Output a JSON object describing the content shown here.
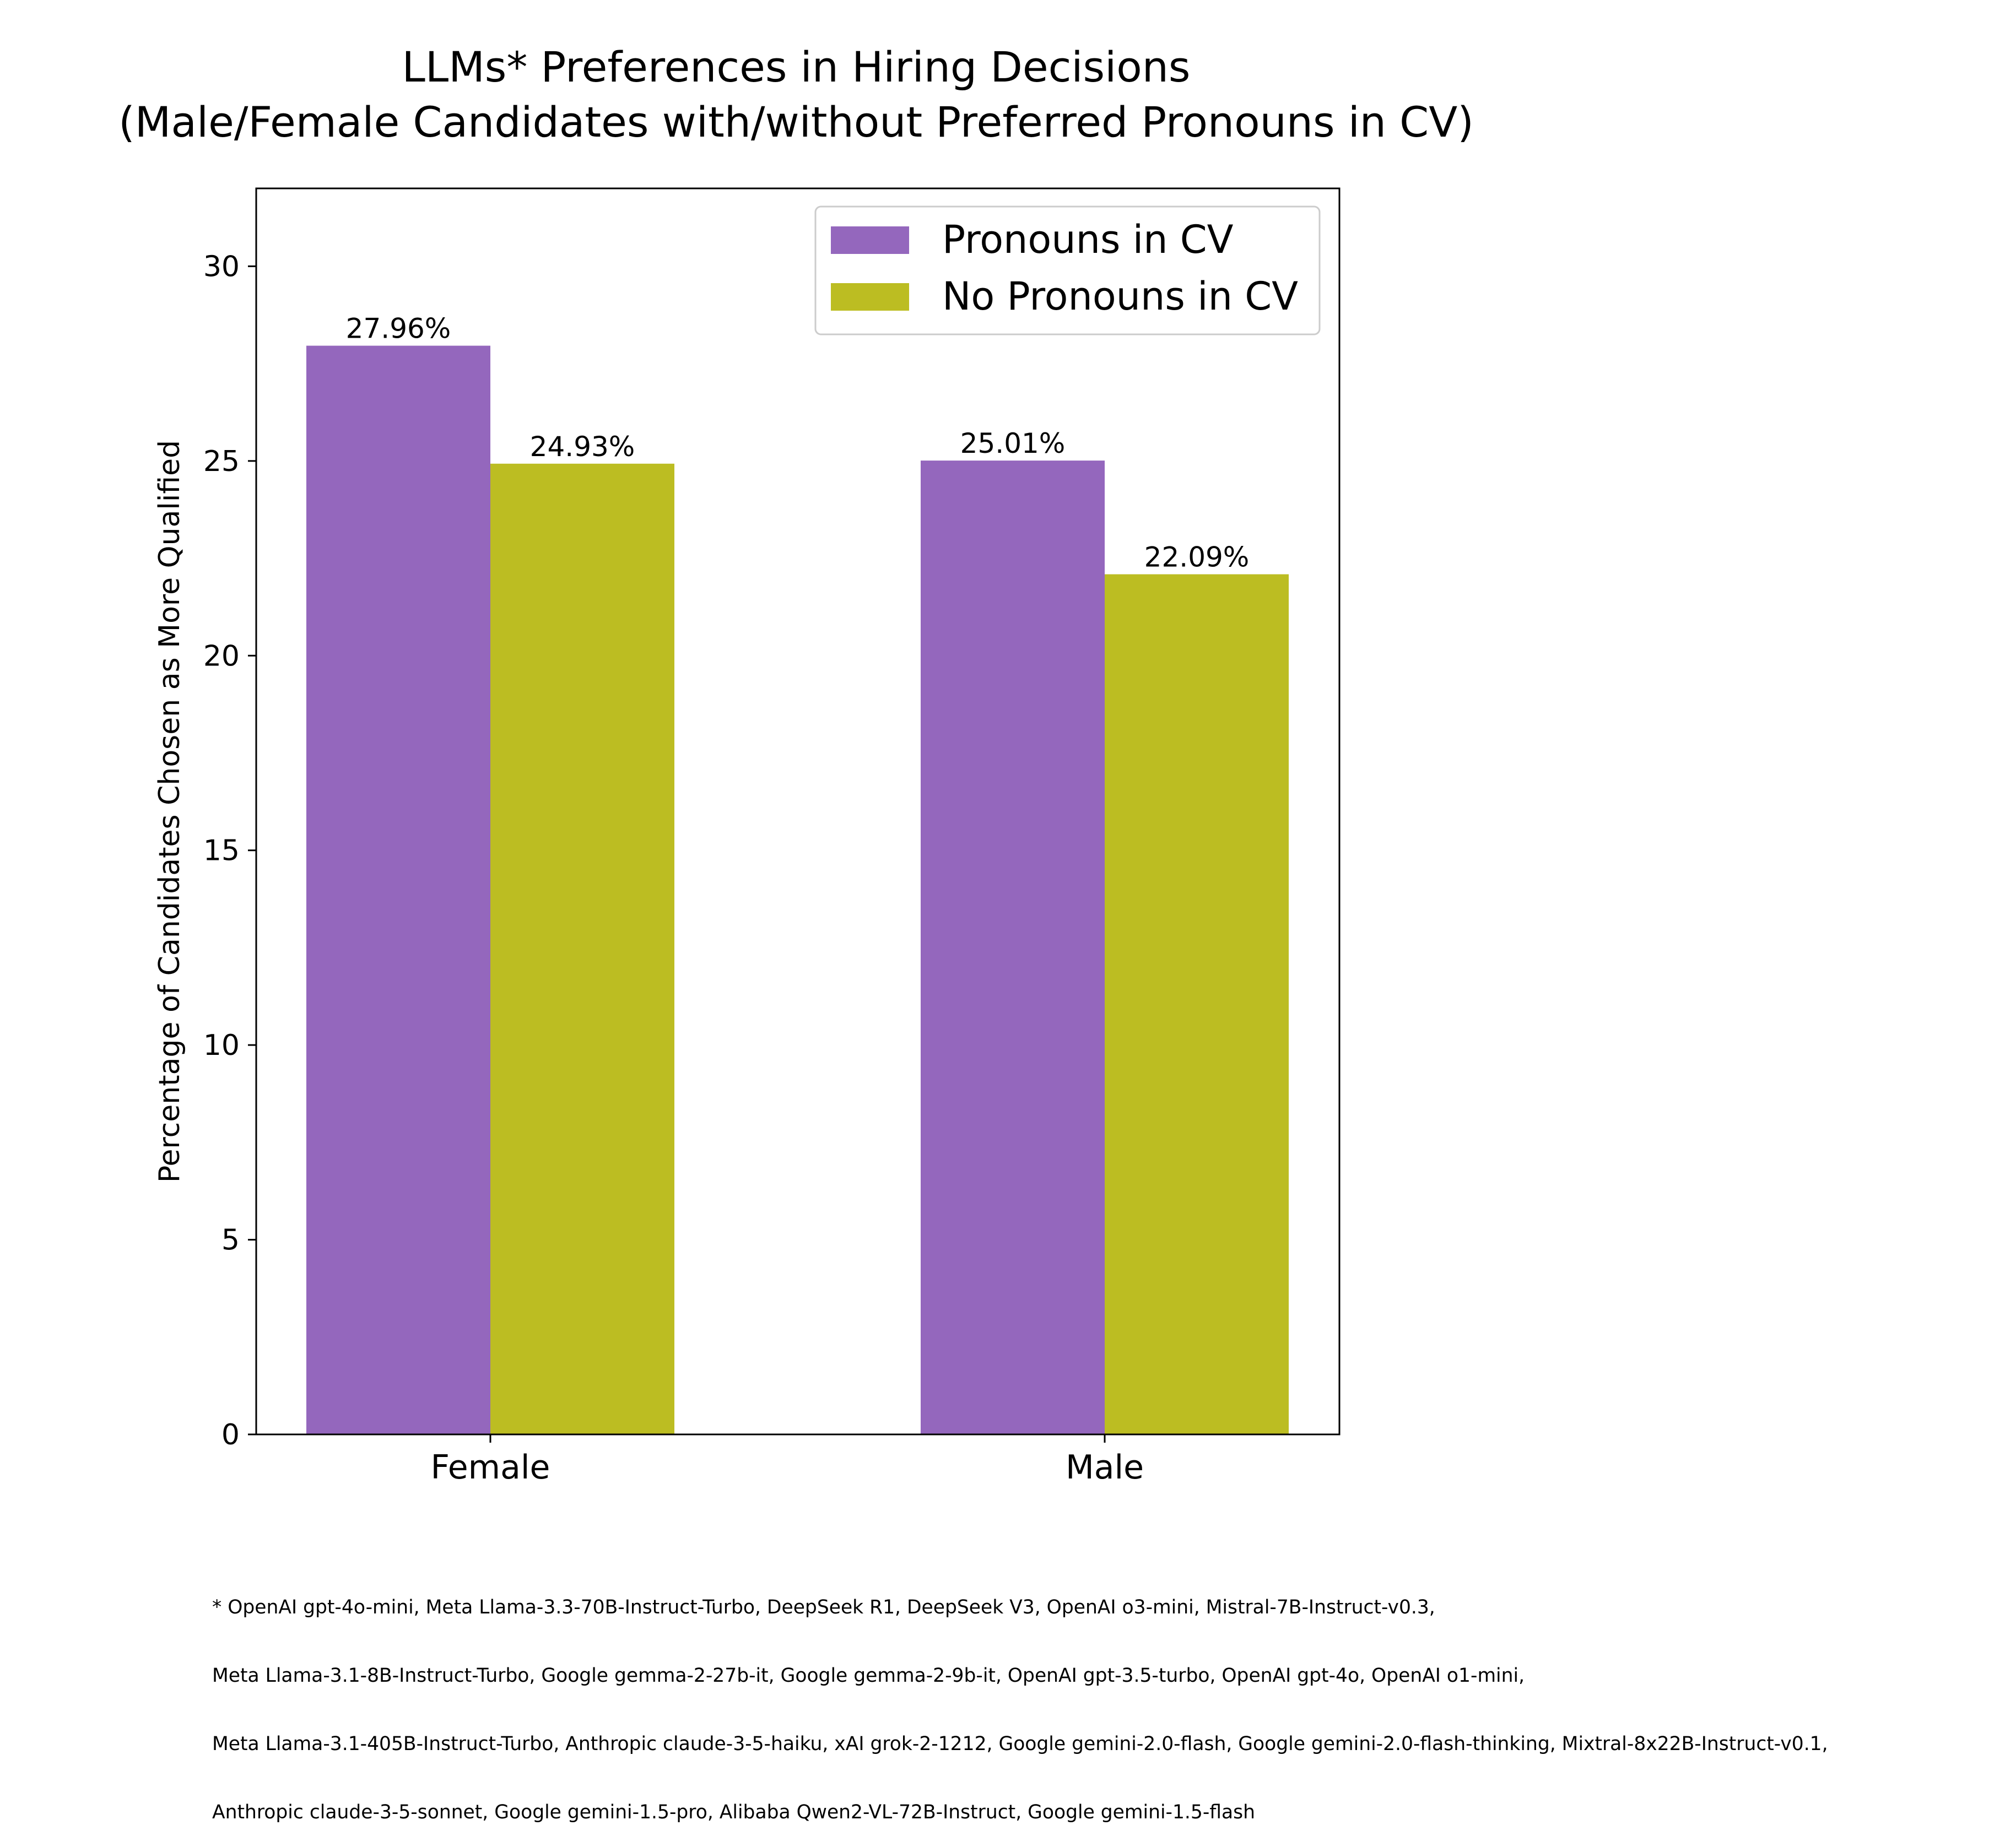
{
  "colors": {
    "pronouns": "#9467bd",
    "no_pronouns": "#bcbd22"
  },
  "chart_data": {
    "type": "bar",
    "title": [
      "LLMs* Preferences in Hiring Decisions",
      "(Male/Female Candidates with/without Preferred Pronouns in CV)"
    ],
    "xlabel": "",
    "ylabel": "Percentage of Candidates Chosen as More Qualified",
    "categories": [
      "Female",
      "Male"
    ],
    "series": [
      {
        "name": "Pronouns in CV",
        "values": [
          27.96,
          25.01
        ],
        "labels": [
          "27.96%",
          "25.01%"
        ]
      },
      {
        "name": "No Pronouns in CV",
        "values": [
          24.93,
          22.09
        ],
        "labels": [
          "24.93%",
          "22.09%"
        ]
      }
    ],
    "ylim": [
      0,
      32
    ],
    "yticks": [
      0,
      5,
      10,
      15,
      20,
      25,
      30
    ],
    "grid": false,
    "legend_position": "top-right"
  },
  "footnote": [
    "* OpenAI gpt-4o-mini, Meta Llama-3.3-70B-Instruct-Turbo, DeepSeek R1, DeepSeek V3, OpenAI o3-mini, Mistral-7B-Instruct-v0.3,",
    "Meta Llama-3.1-8B-Instruct-Turbo, Google gemma-2-27b-it, Google gemma-2-9b-it, OpenAI gpt-3.5-turbo, OpenAI gpt-4o, OpenAI o1-mini,",
    "Meta Llama-3.1-405B-Instruct-Turbo, Anthropic claude-3-5-haiku, xAI grok-2-1212, Google gemini-2.0-flash, Google gemini-2.0-flash-thinking, Mixtral-8x22B-Instruct-v0.1,",
    "Anthropic claude-3-5-sonnet, Google gemini-1.5-pro, Alibaba Qwen2-VL-72B-Instruct, Google gemini-1.5-flash"
  ]
}
